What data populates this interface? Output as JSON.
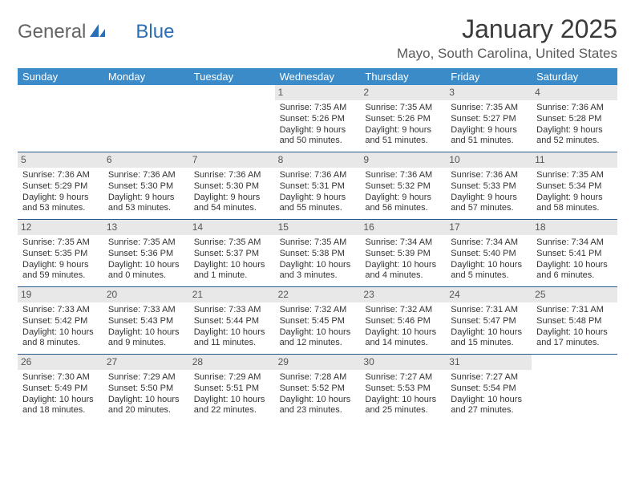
{
  "logo": {
    "text1": "General",
    "text2": "Blue"
  },
  "title": "January 2025",
  "location": "Mayo, South Carolina, United States",
  "colors": {
    "header_bg": "#3b8bc9",
    "header_text": "#ffffff",
    "daynum_bg": "#e8e8e8",
    "rule": "#2a5a8a",
    "logo_gray": "#646464",
    "logo_blue": "#2a6fb5"
  },
  "day_names": [
    "Sunday",
    "Monday",
    "Tuesday",
    "Wednesday",
    "Thursday",
    "Friday",
    "Saturday"
  ],
  "weeks": [
    [
      {
        "empty": true
      },
      {
        "empty": true
      },
      {
        "empty": true
      },
      {
        "n": "1",
        "sr": "Sunrise: 7:35 AM",
        "ss": "Sunset: 5:26 PM",
        "d1": "Daylight: 9 hours",
        "d2": "and 50 minutes."
      },
      {
        "n": "2",
        "sr": "Sunrise: 7:35 AM",
        "ss": "Sunset: 5:26 PM",
        "d1": "Daylight: 9 hours",
        "d2": "and 51 minutes."
      },
      {
        "n": "3",
        "sr": "Sunrise: 7:35 AM",
        "ss": "Sunset: 5:27 PM",
        "d1": "Daylight: 9 hours",
        "d2": "and 51 minutes."
      },
      {
        "n": "4",
        "sr": "Sunrise: 7:36 AM",
        "ss": "Sunset: 5:28 PM",
        "d1": "Daylight: 9 hours",
        "d2": "and 52 minutes."
      }
    ],
    [
      {
        "n": "5",
        "sr": "Sunrise: 7:36 AM",
        "ss": "Sunset: 5:29 PM",
        "d1": "Daylight: 9 hours",
        "d2": "and 53 minutes."
      },
      {
        "n": "6",
        "sr": "Sunrise: 7:36 AM",
        "ss": "Sunset: 5:30 PM",
        "d1": "Daylight: 9 hours",
        "d2": "and 53 minutes."
      },
      {
        "n": "7",
        "sr": "Sunrise: 7:36 AM",
        "ss": "Sunset: 5:30 PM",
        "d1": "Daylight: 9 hours",
        "d2": "and 54 minutes."
      },
      {
        "n": "8",
        "sr": "Sunrise: 7:36 AM",
        "ss": "Sunset: 5:31 PM",
        "d1": "Daylight: 9 hours",
        "d2": "and 55 minutes."
      },
      {
        "n": "9",
        "sr": "Sunrise: 7:36 AM",
        "ss": "Sunset: 5:32 PM",
        "d1": "Daylight: 9 hours",
        "d2": "and 56 minutes."
      },
      {
        "n": "10",
        "sr": "Sunrise: 7:36 AM",
        "ss": "Sunset: 5:33 PM",
        "d1": "Daylight: 9 hours",
        "d2": "and 57 minutes."
      },
      {
        "n": "11",
        "sr": "Sunrise: 7:35 AM",
        "ss": "Sunset: 5:34 PM",
        "d1": "Daylight: 9 hours",
        "d2": "and 58 minutes."
      }
    ],
    [
      {
        "n": "12",
        "sr": "Sunrise: 7:35 AM",
        "ss": "Sunset: 5:35 PM",
        "d1": "Daylight: 9 hours",
        "d2": "and 59 minutes."
      },
      {
        "n": "13",
        "sr": "Sunrise: 7:35 AM",
        "ss": "Sunset: 5:36 PM",
        "d1": "Daylight: 10 hours",
        "d2": "and 0 minutes."
      },
      {
        "n": "14",
        "sr": "Sunrise: 7:35 AM",
        "ss": "Sunset: 5:37 PM",
        "d1": "Daylight: 10 hours",
        "d2": "and 1 minute."
      },
      {
        "n": "15",
        "sr": "Sunrise: 7:35 AM",
        "ss": "Sunset: 5:38 PM",
        "d1": "Daylight: 10 hours",
        "d2": "and 3 minutes."
      },
      {
        "n": "16",
        "sr": "Sunrise: 7:34 AM",
        "ss": "Sunset: 5:39 PM",
        "d1": "Daylight: 10 hours",
        "d2": "and 4 minutes."
      },
      {
        "n": "17",
        "sr": "Sunrise: 7:34 AM",
        "ss": "Sunset: 5:40 PM",
        "d1": "Daylight: 10 hours",
        "d2": "and 5 minutes."
      },
      {
        "n": "18",
        "sr": "Sunrise: 7:34 AM",
        "ss": "Sunset: 5:41 PM",
        "d1": "Daylight: 10 hours",
        "d2": "and 6 minutes."
      }
    ],
    [
      {
        "n": "19",
        "sr": "Sunrise: 7:33 AM",
        "ss": "Sunset: 5:42 PM",
        "d1": "Daylight: 10 hours",
        "d2": "and 8 minutes."
      },
      {
        "n": "20",
        "sr": "Sunrise: 7:33 AM",
        "ss": "Sunset: 5:43 PM",
        "d1": "Daylight: 10 hours",
        "d2": "and 9 minutes."
      },
      {
        "n": "21",
        "sr": "Sunrise: 7:33 AM",
        "ss": "Sunset: 5:44 PM",
        "d1": "Daylight: 10 hours",
        "d2": "and 11 minutes."
      },
      {
        "n": "22",
        "sr": "Sunrise: 7:32 AM",
        "ss": "Sunset: 5:45 PM",
        "d1": "Daylight: 10 hours",
        "d2": "and 12 minutes."
      },
      {
        "n": "23",
        "sr": "Sunrise: 7:32 AM",
        "ss": "Sunset: 5:46 PM",
        "d1": "Daylight: 10 hours",
        "d2": "and 14 minutes."
      },
      {
        "n": "24",
        "sr": "Sunrise: 7:31 AM",
        "ss": "Sunset: 5:47 PM",
        "d1": "Daylight: 10 hours",
        "d2": "and 15 minutes."
      },
      {
        "n": "25",
        "sr": "Sunrise: 7:31 AM",
        "ss": "Sunset: 5:48 PM",
        "d1": "Daylight: 10 hours",
        "d2": "and 17 minutes."
      }
    ],
    [
      {
        "n": "26",
        "sr": "Sunrise: 7:30 AM",
        "ss": "Sunset: 5:49 PM",
        "d1": "Daylight: 10 hours",
        "d2": "and 18 minutes."
      },
      {
        "n": "27",
        "sr": "Sunrise: 7:29 AM",
        "ss": "Sunset: 5:50 PM",
        "d1": "Daylight: 10 hours",
        "d2": "and 20 minutes."
      },
      {
        "n": "28",
        "sr": "Sunrise: 7:29 AM",
        "ss": "Sunset: 5:51 PM",
        "d1": "Daylight: 10 hours",
        "d2": "and 22 minutes."
      },
      {
        "n": "29",
        "sr": "Sunrise: 7:28 AM",
        "ss": "Sunset: 5:52 PM",
        "d1": "Daylight: 10 hours",
        "d2": "and 23 minutes."
      },
      {
        "n": "30",
        "sr": "Sunrise: 7:27 AM",
        "ss": "Sunset: 5:53 PM",
        "d1": "Daylight: 10 hours",
        "d2": "and 25 minutes."
      },
      {
        "n": "31",
        "sr": "Sunrise: 7:27 AM",
        "ss": "Sunset: 5:54 PM",
        "d1": "Daylight: 10 hours",
        "d2": "and 27 minutes."
      },
      {
        "empty": true
      }
    ]
  ]
}
